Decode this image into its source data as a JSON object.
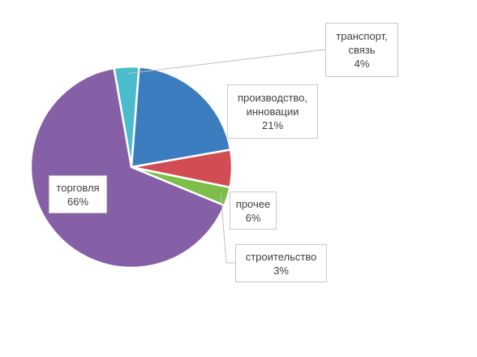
{
  "chart_data": {
    "type": "pie",
    "title": "",
    "start_angle_deg": -100,
    "slices": [
      {
        "name": "транспорт, связь",
        "lines": [
          "транспорт,",
          "связь"
        ],
        "value": 4,
        "label": "4%",
        "color": "#4BBCCB"
      },
      {
        "name": "производство, инновации",
        "lines": [
          "производство,",
          "инновации"
        ],
        "value": 21,
        "label": "21%",
        "color": "#3B7DBE"
      },
      {
        "name": "прочее",
        "lines": [
          "прочее"
        ],
        "value": 6,
        "label": "6%",
        "color": "#D14D53"
      },
      {
        "name": "строительство",
        "lines": [
          "строительство"
        ],
        "value": 3,
        "label": "3%",
        "color": "#7DBE4A"
      },
      {
        "name": "торговля",
        "lines": [
          "торговля"
        ],
        "value": 66,
        "label": "66%",
        "color": "#8660A7"
      }
    ]
  }
}
